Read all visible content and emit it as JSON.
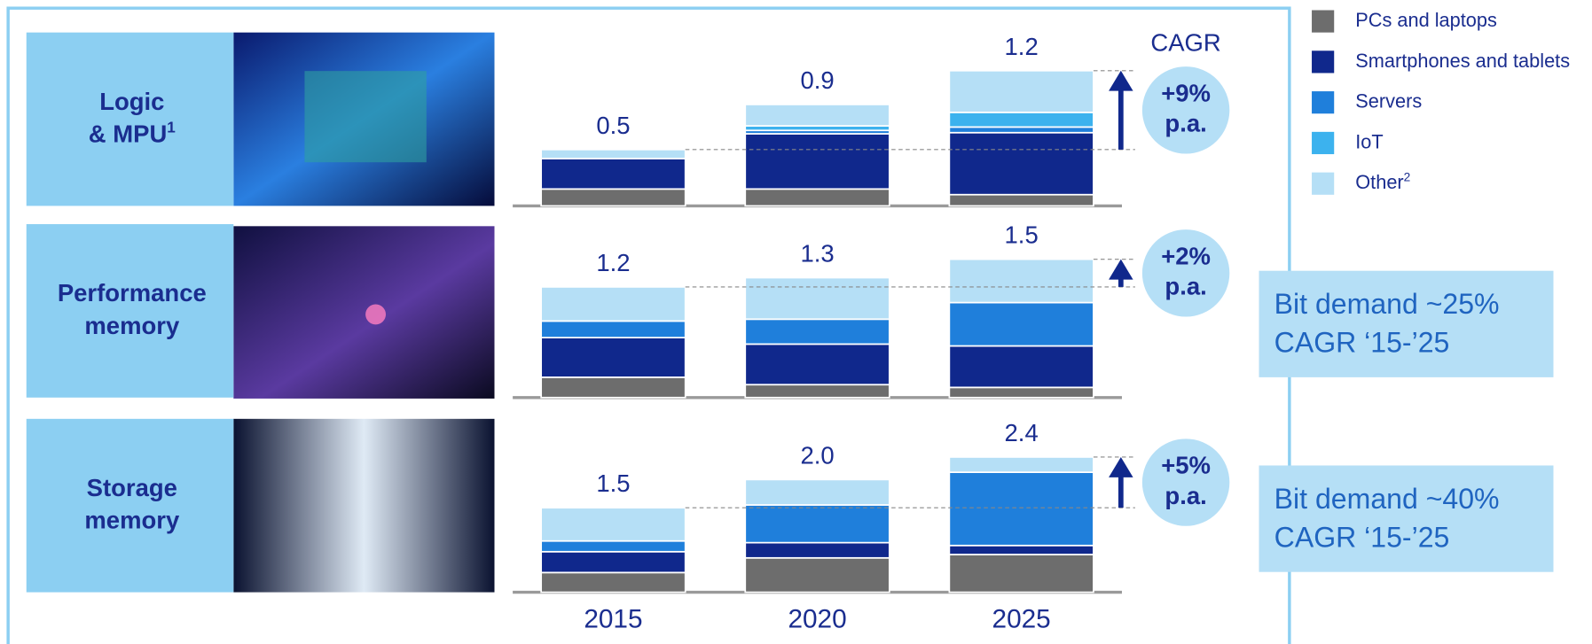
{
  "chart_data": {
    "type": "stacked_bar_panels",
    "categories": [
      "2015",
      "2020",
      "2025"
    ],
    "cagr_header": "CAGR",
    "series": [
      {
        "name": "PCs and laptops",
        "color": "#6d6d6d",
        "values": [
          [
            0.15,
            0.15,
            0.1
          ],
          [
            0.22,
            0.14,
            0.11
          ],
          [
            0.35,
            0.61,
            0.67
          ]
        ]
      },
      {
        "name": "Smartphones and tablets",
        "color": "#10288c",
        "values": [
          [
            0.27,
            0.49,
            0.55
          ],
          [
            0.43,
            0.44,
            0.45
          ],
          [
            0.37,
            0.27,
            0.16
          ]
        ]
      },
      {
        "name": "Servers",
        "color": "#1f7fdb",
        "values": [
          [
            0,
            0.03,
            0.05
          ],
          [
            0.18,
            0.27,
            0.47
          ],
          [
            0.19,
            0.67,
            1.3
          ]
        ]
      },
      {
        "name": "IoT",
        "color": "#3cb2ee",
        "values": [
          [
            0,
            0.04,
            0.13
          ],
          [
            0,
            0,
            0
          ],
          [
            0,
            0,
            0
          ]
        ]
      },
      {
        "name": "Other",
        "note": "2",
        "color": "#b5dff6",
        "values": [
          [
            0.08,
            0.19,
            0.37
          ],
          [
            0.37,
            0.45,
            0.47
          ],
          [
            0.59,
            0.45,
            0.27
          ]
        ]
      }
    ],
    "panels": [
      {
        "title": [
          "Logic",
          "& MPU"
        ],
        "title_note": "1",
        "ylim": [
          0,
          1.35
        ],
        "totals": [
          0.5,
          0.9,
          1.2
        ],
        "cagr": [
          "+9%",
          "p.a."
        ]
      },
      {
        "title": [
          "Performance",
          "memory"
        ],
        "ylim": [
          0,
          1.65
        ],
        "totals": [
          1.2,
          1.3,
          1.5
        ],
        "cagr": [
          "+2%",
          "p.a."
        ],
        "side_note": [
          "Bit demand ~25%",
          "CAGR ‘15-’25"
        ]
      },
      {
        "title": [
          "Storage",
          "memory"
        ],
        "ylim": [
          0,
          2.7
        ],
        "totals": [
          1.5,
          2.0,
          2.4
        ],
        "value_labels": [
          "1.5",
          "2.0",
          "2.4"
        ],
        "cagr": [
          "+5%",
          "p.a."
        ],
        "side_note": [
          "Bit demand ~40%",
          "CAGR ‘15-’25"
        ]
      }
    ]
  }
}
